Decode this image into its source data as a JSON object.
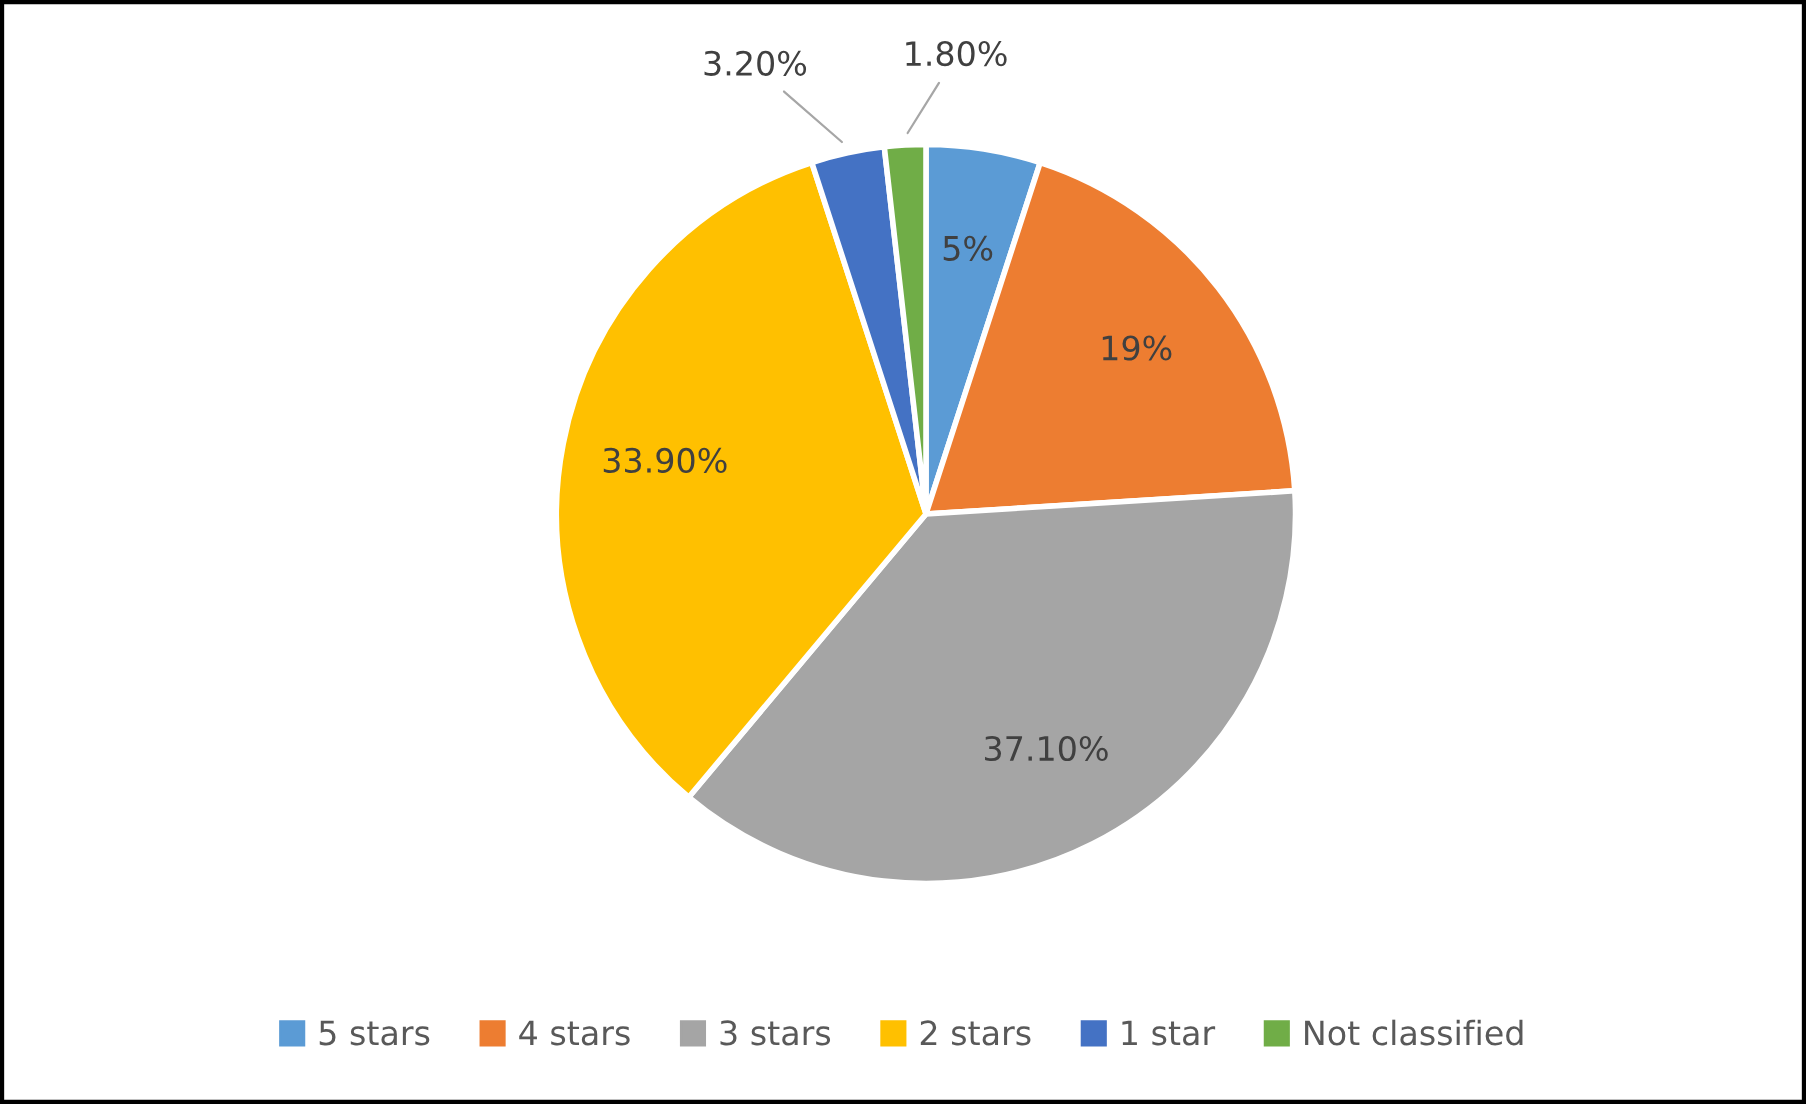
{
  "chart_data": {
    "type": "pie",
    "categories": [
      "5 stars",
      "4 stars",
      "3 stars",
      "2 stars",
      "1 star",
      "Not classified"
    ],
    "values": [
      5,
      19,
      37.1,
      33.9,
      3.2,
      1.8
    ],
    "colors": [
      "#5b9bd5",
      "#ed7d31",
      "#a5a5a5",
      "#ffc000",
      "#4472c4",
      "#70ad47"
    ],
    "value_labels": [
      "5%",
      "19%",
      "37.10%",
      "33.90%",
      "3.20%",
      "1.80%"
    ],
    "legend": "bottom"
  }
}
